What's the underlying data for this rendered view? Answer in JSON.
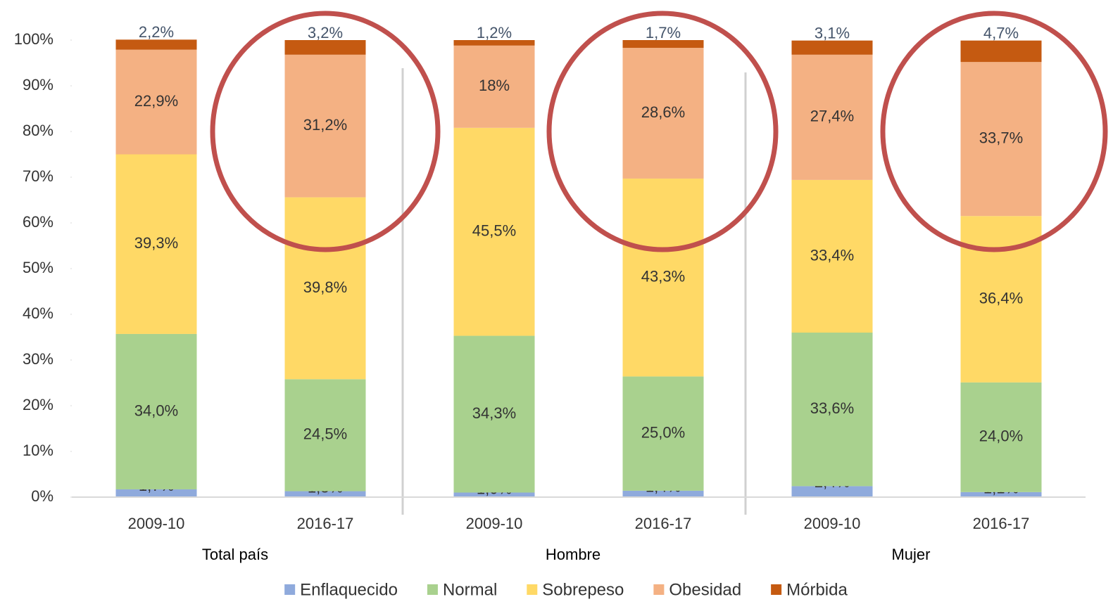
{
  "chart_data": {
    "type": "stacked_bar",
    "categories": [
      "2009-10",
      "2016-17",
      "2009-10",
      "2016-17",
      "2009-10",
      "2016-17"
    ],
    "groups": [
      "Total país",
      "Hombre",
      "Mujer"
    ],
    "series": [
      {
        "name": "Enflaquecido",
        "color": "#8faadc",
        "values": [
          1.7,
          1.3,
          1.0,
          1.4,
          2.4,
          1.1
        ],
        "value_labels": [
          "1,7%",
          "1,3%",
          "1,0%",
          "1,4%",
          "2,4%",
          "1,1%"
        ]
      },
      {
        "name": "Normal",
        "color": "#a9d18e",
        "values": [
          34.0,
          24.5,
          34.3,
          25.0,
          33.6,
          24.0
        ],
        "value_labels": [
          "34,0%",
          "24,5%",
          "34,3%",
          "25,0%",
          "33,6%",
          "24,0%"
        ]
      },
      {
        "name": "Sobrepeso",
        "color": "#ffd966",
        "values": [
          39.3,
          39.8,
          45.5,
          43.3,
          33.4,
          36.4
        ],
        "value_labels": [
          "39,3%",
          "39,8%",
          "45,5%",
          "43,3%",
          "33,4%",
          "36,4%"
        ]
      },
      {
        "name": "Obesidad",
        "color": "#f4b183",
        "values": [
          22.9,
          31.2,
          18,
          28.6,
          27.4,
          33.7
        ],
        "value_labels": [
          "22,9%",
          "31,2%",
          "18%",
          "28,6%",
          "27,4%",
          "33,7%"
        ]
      },
      {
        "name": "Mórbida",
        "color": "#c55a11",
        "values": [
          2.2,
          3.2,
          1.2,
          1.7,
          3.1,
          4.7
        ],
        "value_labels": [
          "2,2%",
          "3,2%",
          "1,2%",
          "1,7%",
          "3,1%",
          "4,7%"
        ]
      }
    ],
    "ylim": [
      0,
      100
    ],
    "yticks": [
      {
        "value": 0,
        "label": "0%"
      },
      {
        "value": 10,
        "label": "10%"
      },
      {
        "value": 20,
        "label": "20%"
      },
      {
        "value": 30,
        "label": "30%"
      },
      {
        "value": 40,
        "label": "40%"
      },
      {
        "value": 50,
        "label": "50%"
      },
      {
        "value": 60,
        "label": "60%"
      },
      {
        "value": 70,
        "label": "70%"
      },
      {
        "value": 80,
        "label": "80%"
      },
      {
        "value": 90,
        "label": "90%"
      },
      {
        "value": 100,
        "label": "100%"
      }
    ],
    "legend": "bottom"
  }
}
